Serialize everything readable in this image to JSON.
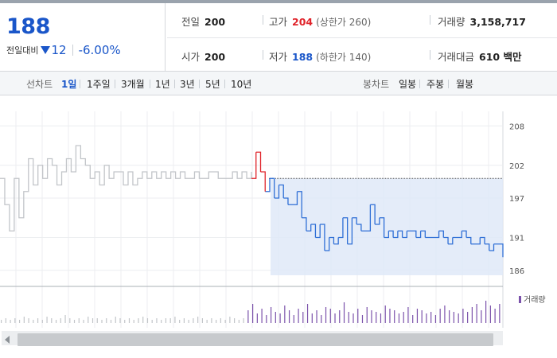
{
  "quote": {
    "price": "188",
    "change_label": "전일대비",
    "change_value": "12",
    "change_pct": "-6.00%",
    "prev_close_label": "전일",
    "prev_close": "200",
    "open_label": "시가",
    "open": "200",
    "high_label": "고가",
    "high": "204",
    "upper_limit": "(상한가 260)",
    "low_label": "저가",
    "low": "188",
    "lower_limit": "(하한가 140)",
    "volume_label": "거래량",
    "volume": "3,158,717",
    "amount_label": "거래대금",
    "amount": "610 백만",
    "colors": {
      "up": "#e0242b",
      "down": "#1a56c9"
    }
  },
  "period_bar": {
    "line_title": "선차트",
    "line_periods": [
      "1일",
      "1주일",
      "3개월",
      "1년",
      "3년",
      "5년",
      "10년"
    ],
    "active_period": "1일",
    "candle_title": "봉차트",
    "candle_periods": [
      "일봉",
      "주봉",
      "월봉"
    ]
  },
  "chart_data": {
    "type": "line",
    "y_ticks": [
      "208",
      "202",
      "197",
      "191",
      "186"
    ],
    "ylim": [
      185,
      209
    ],
    "reference_price": 200,
    "series": [
      {
        "values": [
          200,
          196,
          192,
          200,
          194,
          198,
          203,
          199,
          202,
          200,
          203,
          202,
          199,
          201,
          203,
          201,
          205,
          203,
          202,
          200,
          201,
          199,
          202,
          200,
          201,
          201,
          199,
          201,
          199,
          200,
          201,
          200,
          201,
          200,
          201,
          200,
          201,
          200,
          201,
          200,
          200,
          201,
          200,
          200,
          201,
          201,
          200,
          200,
          200,
          201,
          200,
          201,
          200,
          201
        ]
      },
      {
        "values": [
          200,
          204,
          201,
          198,
          200,
          197,
          199,
          197,
          196,
          196,
          198,
          194,
          192,
          193,
          191,
          193,
          189,
          191,
          190,
          191,
          194,
          190,
          194,
          193,
          192,
          192,
          196,
          193,
          194,
          191,
          192,
          191,
          192,
          191,
          192,
          192,
          191,
          192,
          191,
          191,
          191,
          192,
          191,
          190,
          191,
          191,
          192,
          191,
          190,
          190,
          191,
          190,
          189,
          190,
          190,
          188
        ]
      }
    ],
    "volume_label": "거래량",
    "volume": [
      2,
      3,
      2,
      3,
      2,
      4,
      3,
      2,
      3,
      2,
      4,
      3,
      2,
      3,
      5,
      3,
      2,
      3,
      2,
      4,
      3,
      3,
      2,
      3,
      2,
      4,
      3,
      2,
      3,
      2,
      3,
      4,
      3,
      2,
      3,
      2,
      3,
      3,
      4,
      2,
      3,
      2,
      3,
      4,
      3,
      2,
      3,
      2,
      3,
      2,
      4,
      3,
      2,
      3,
      8,
      12,
      6,
      9,
      5,
      10,
      7,
      6,
      11,
      8,
      5,
      9,
      7,
      12,
      6,
      8,
      5,
      10,
      9,
      6,
      8,
      13,
      7,
      6,
      9,
      5,
      10,
      8,
      7,
      6,
      11,
      9,
      8,
      6,
      7,
      10,
      5,
      9,
      8,
      6,
      7,
      5,
      9,
      11,
      8,
      7,
      6,
      9,
      7,
      10,
      12,
      8,
      14,
      11,
      9,
      12
    ]
  }
}
